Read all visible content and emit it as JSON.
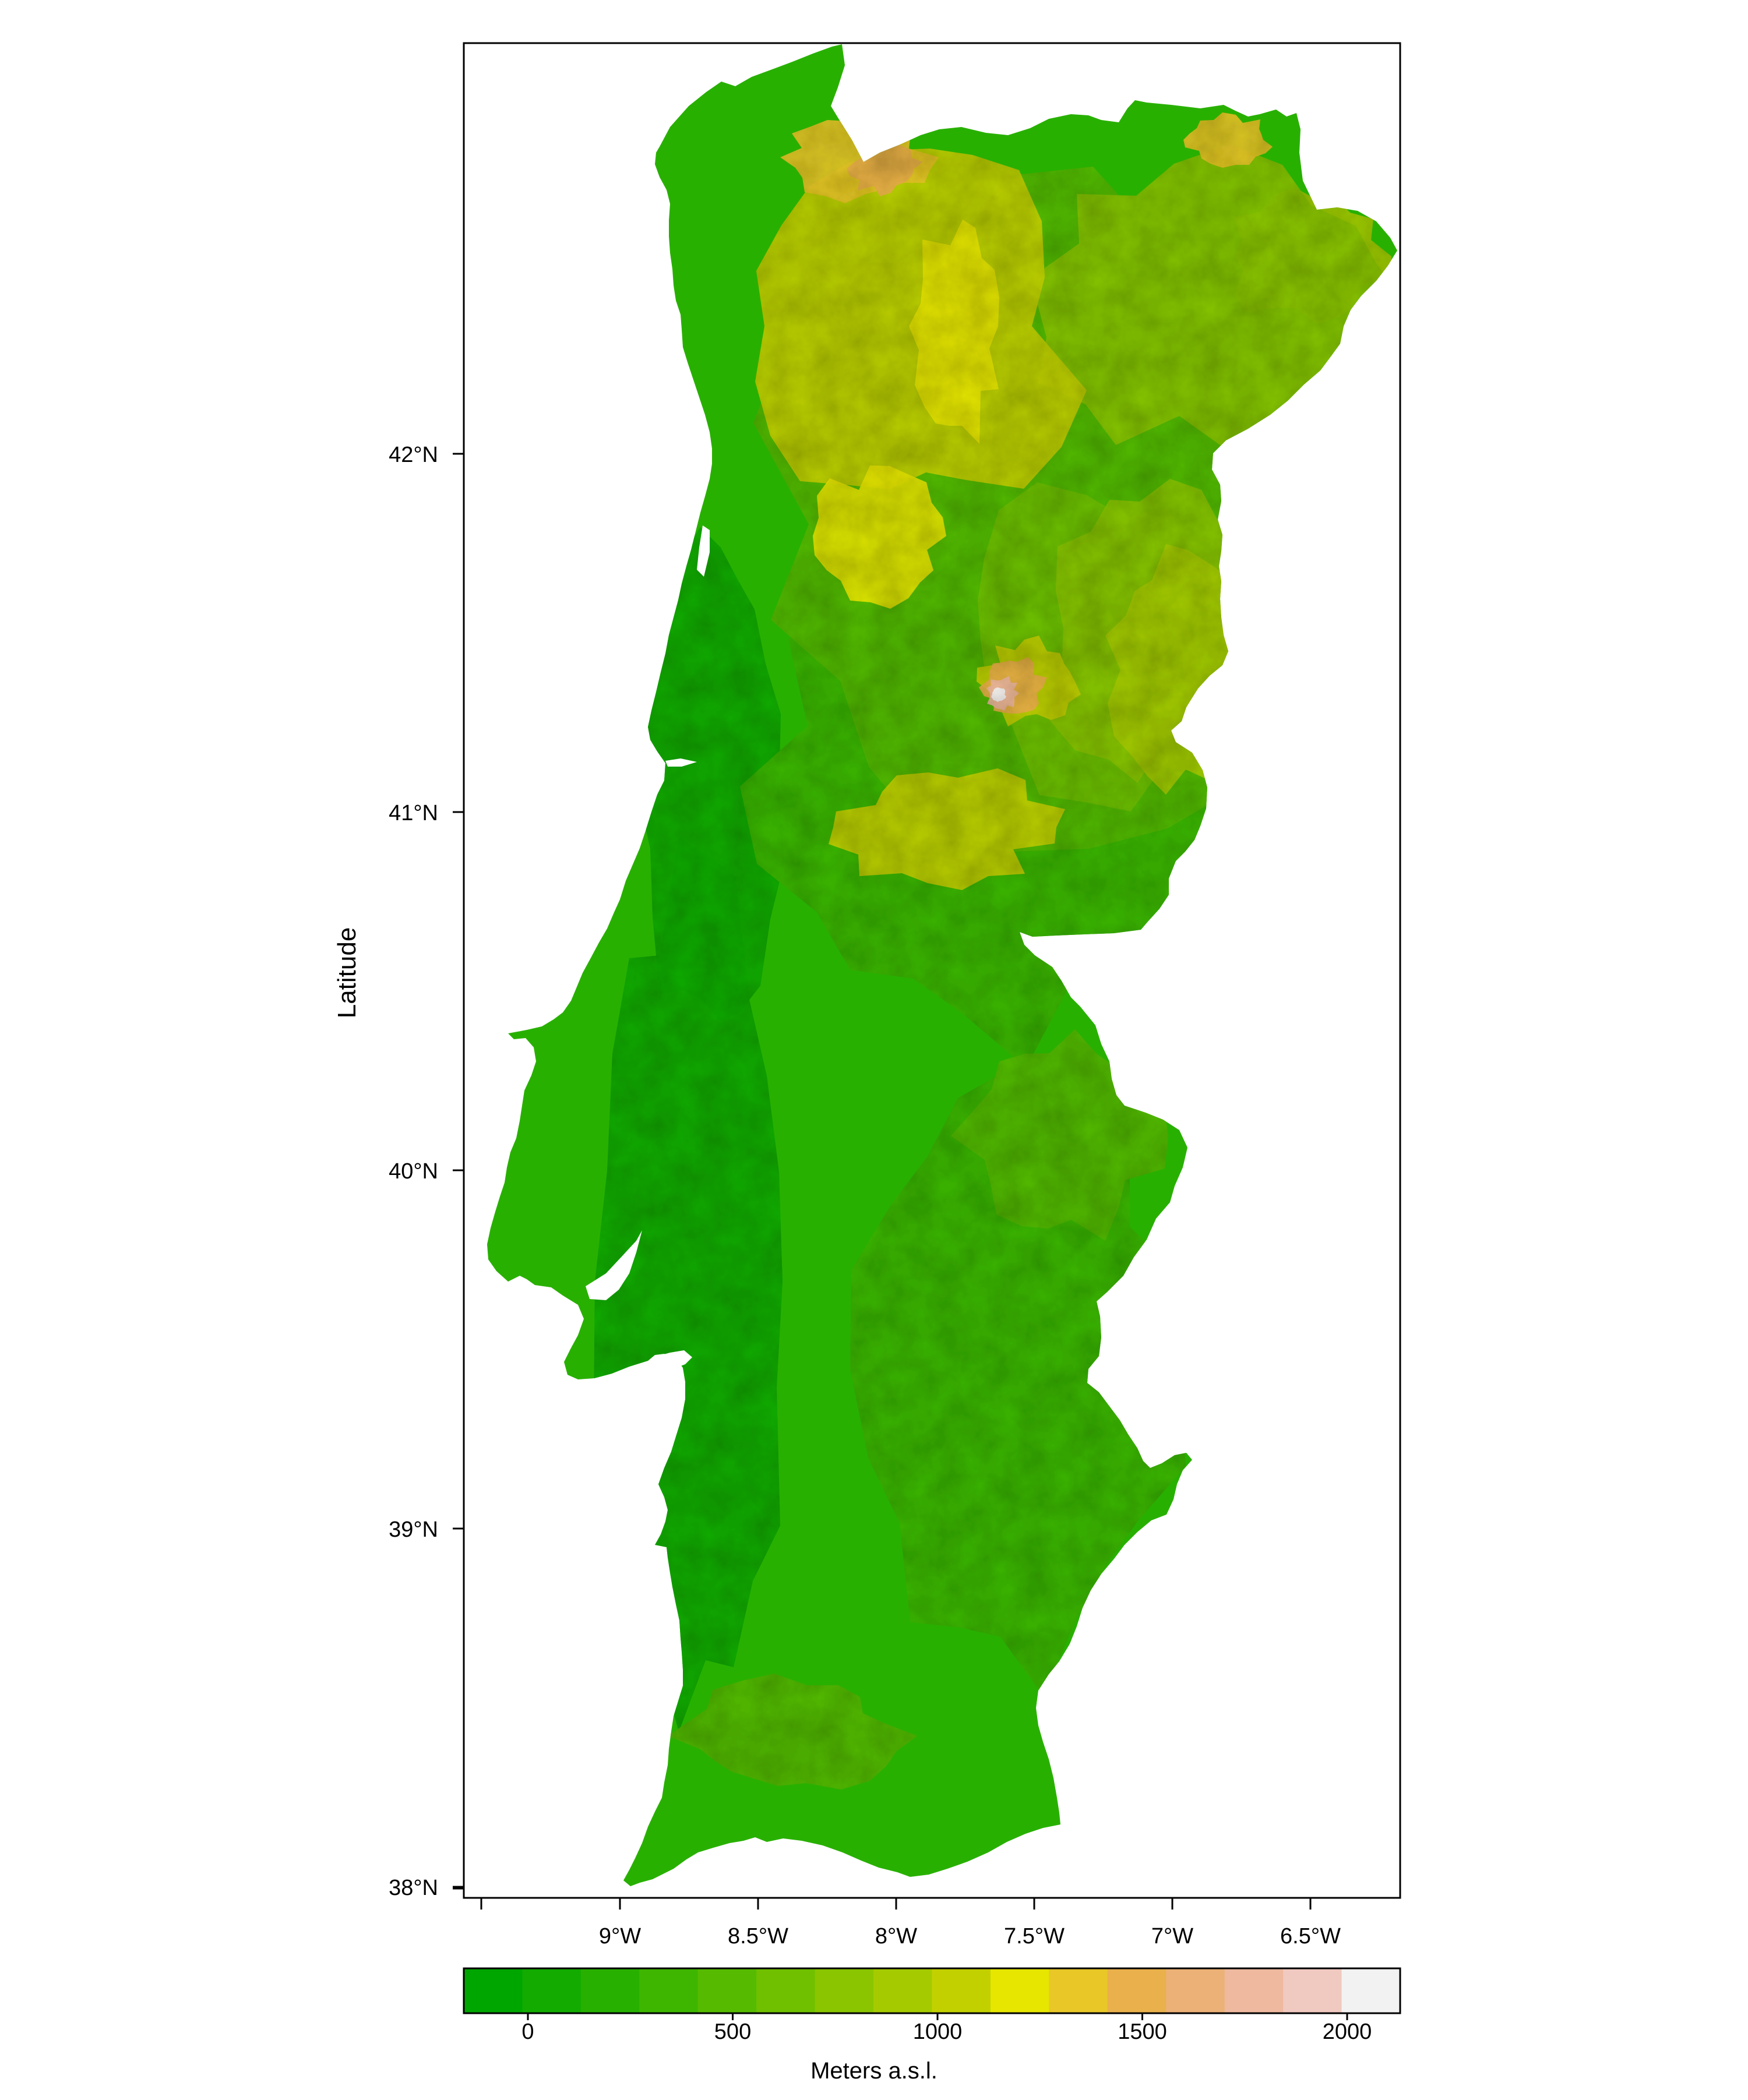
{
  "map": {
    "ylabel": "Latitude",
    "xlabel": "",
    "x_ticks": [
      {
        "lon": -9.0,
        "label": "9°W"
      },
      {
        "lon": -8.5,
        "label": "8.5°W"
      },
      {
        "lon": -8.0,
        "label": "8°W"
      },
      {
        "lon": -7.5,
        "label": "7.5°W"
      },
      {
        "lon": -7.0,
        "label": "7°W"
      },
      {
        "lon": -6.5,
        "label": "6.5°W"
      }
    ],
    "y_ticks": [
      {
        "lat": 42,
        "label": "42°N"
      },
      {
        "lat": 41,
        "label": "41°N"
      },
      {
        "lat": 40,
        "label": "40°N"
      },
      {
        "lat": 39,
        "label": "39°N"
      },
      {
        "lat": 38,
        "label": "38°N"
      }
    ],
    "background_color": "#ffffff",
    "colorbar": {
      "title": "Meters a.s.l.",
      "ticks": [
        {
          "value": 0,
          "label": "0"
        },
        {
          "value": 500,
          "label": "500"
        },
        {
          "value": 1000,
          "label": "1000"
        },
        {
          "value": 1500,
          "label": "1500"
        },
        {
          "value": 2000,
          "label": "2000"
        }
      ],
      "colors": [
        "#00a600",
        "#13ab00",
        "#28b000",
        "#3eb600",
        "#56bb00",
        "#70c000",
        "#8ac500",
        "#a5cb00",
        "#c3d000",
        "#e6e600",
        "#e8c727",
        "#eab04b",
        "#ecb176",
        "#eeb99f",
        "#f0c9c0",
        "#f2f2f2"
      ]
    }
  },
  "chart_data": {
    "type": "heatmap",
    "title": "",
    "xlabel": "",
    "ylabel": "Latitude",
    "colorbar_label": "Meters a.s.l.",
    "value_range": [
      -150,
      2050
    ],
    "x_ticks": [
      "9°W",
      "8.5°W",
      "8°W",
      "7.5°W",
      "7°W",
      "6.5°W"
    ],
    "y_ticks": [
      "42°N",
      "41°N",
      "40°N",
      "39°N",
      "38°N"
    ],
    "colorbar_ticks": [
      0,
      500,
      1000,
      1500,
      2000
    ],
    "colorbar_tick_labels": [
      "0",
      "500",
      "1000",
      "1500",
      "2000"
    ],
    "legend": "bottom"
  }
}
